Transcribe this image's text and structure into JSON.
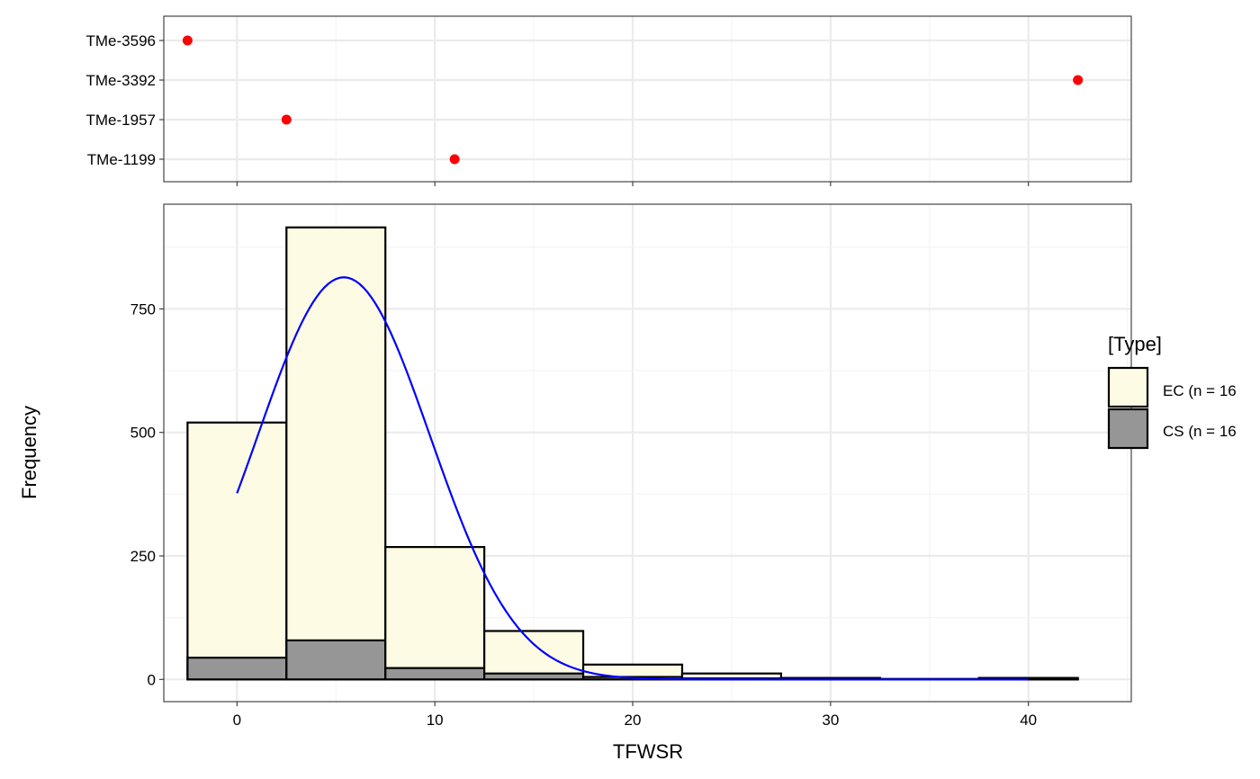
{
  "chart_data": [
    {
      "type": "scatter",
      "panel": "top",
      "categories": [
        "TMe-3596",
        "TMe-3392",
        "TMe-1957",
        "TMe-1199"
      ],
      "points": [
        {
          "label": "TMe-3596",
          "x": -2.5
        },
        {
          "label": "TMe-3392",
          "x": 42.5
        },
        {
          "label": "TMe-1957",
          "x": 2.5
        },
        {
          "label": "TMe-1199",
          "x": 11.0
        }
      ],
      "xlim": [
        -3.7,
        45.2
      ],
      "point_color": "#ff0000",
      "grid": true
    },
    {
      "type": "bar",
      "panel": "bottom",
      "xlabel": "TFWSR",
      "ylabel": "Frequency",
      "xlim": [
        -3.7,
        45.2
      ],
      "ylim": [
        -45,
        962
      ],
      "x_ticks": [
        0,
        10,
        20,
        30,
        40
      ],
      "y_ticks": [
        0,
        250,
        500,
        750
      ],
      "bin_width": 5,
      "bins": [
        {
          "x0": -2.5,
          "x1": 2.5,
          "ec": 520,
          "cs": 44
        },
        {
          "x0": 2.5,
          "x1": 7.5,
          "ec": 915,
          "cs": 79
        },
        {
          "x0": 7.5,
          "x1": 12.5,
          "ec": 268,
          "cs": 23
        },
        {
          "x0": 12.5,
          "x1": 17.5,
          "ec": 98,
          "cs": 12
        },
        {
          "x0": 17.5,
          "x1": 22.5,
          "ec": 30,
          "cs": 5
        },
        {
          "x0": 22.5,
          "x1": 27.5,
          "ec": 12,
          "cs": 2
        },
        {
          "x0": 27.5,
          "x1": 32.5,
          "ec": 3,
          "cs": 1
        },
        {
          "x0": 32.5,
          "x1": 37.5,
          "ec": 1,
          "cs": 0
        },
        {
          "x0": 37.5,
          "x1": 42.5,
          "ec": 3,
          "cs": 1
        }
      ],
      "density_curve": {
        "color": "#0000ff",
        "x_range": [
          0,
          40
        ],
        "mean": 5.4,
        "sd": 4.35,
        "peak": 814
      },
      "legend": {
        "title": "[Type]",
        "position": "right",
        "entries": [
          {
            "label": "EC (n = 16",
            "fill": "#fdfbe4"
          },
          {
            "label": "CS (n = 16",
            "fill": "#969696"
          }
        ]
      },
      "grid": true
    }
  ]
}
